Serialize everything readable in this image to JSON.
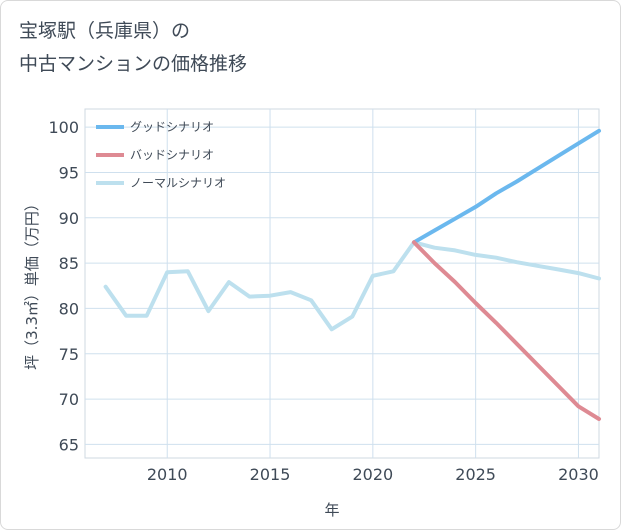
{
  "title_lines": [
    "宝塚駅（兵庫県）の",
    "中古マンションの価格推移"
  ],
  "chart_data": {
    "type": "line",
    "title": "宝塚駅（兵庫県）の中古マンションの価格推移",
    "xlabel": "年",
    "ylabel": "坪（3.3㎡）単価（万円）",
    "xlim": [
      2006.0,
      2031.0
    ],
    "ylim": [
      63.5,
      102.0
    ],
    "xticks": [
      2010,
      2015,
      2020,
      2025,
      2030
    ],
    "yticks": [
      65,
      70,
      75,
      80,
      85,
      90,
      95,
      100
    ],
    "grid": true,
    "legend_position": "top-left",
    "series": [
      {
        "name": "グッドシナリオ",
        "color": "#6bb8ee",
        "x": [
          2022,
          2023,
          2024,
          2025,
          2026,
          2027,
          2028,
          2029,
          2030,
          2031
        ],
        "y": [
          87.3,
          88.6,
          89.9,
          91.2,
          92.7,
          94.0,
          95.4,
          96.8,
          98.2,
          99.6
        ]
      },
      {
        "name": "バッドシナリオ",
        "color": "#de8a93",
        "x": [
          2022,
          2023,
          2024,
          2025,
          2026,
          2027,
          2028,
          2029,
          2030,
          2031
        ],
        "y": [
          87.3,
          85.0,
          82.9,
          80.6,
          78.4,
          76.1,
          73.8,
          71.5,
          69.2,
          67.8
        ]
      },
      {
        "name": "ノーマルシナリオ",
        "color": "#bde0ee",
        "x": [
          2007,
          2008,
          2009,
          2010,
          2011,
          2012,
          2013,
          2014,
          2015,
          2016,
          2017,
          2018,
          2019,
          2020,
          2021,
          2022,
          2023,
          2024,
          2025,
          2026,
          2027,
          2028,
          2029,
          2030,
          2031
        ],
        "y": [
          82.4,
          79.2,
          79.2,
          84.0,
          84.1,
          79.7,
          82.9,
          81.3,
          81.4,
          81.8,
          80.9,
          77.7,
          79.1,
          83.6,
          84.1,
          87.3,
          86.7,
          86.4,
          85.9,
          85.6,
          85.1,
          84.7,
          84.3,
          83.9,
          83.3
        ]
      }
    ]
  }
}
